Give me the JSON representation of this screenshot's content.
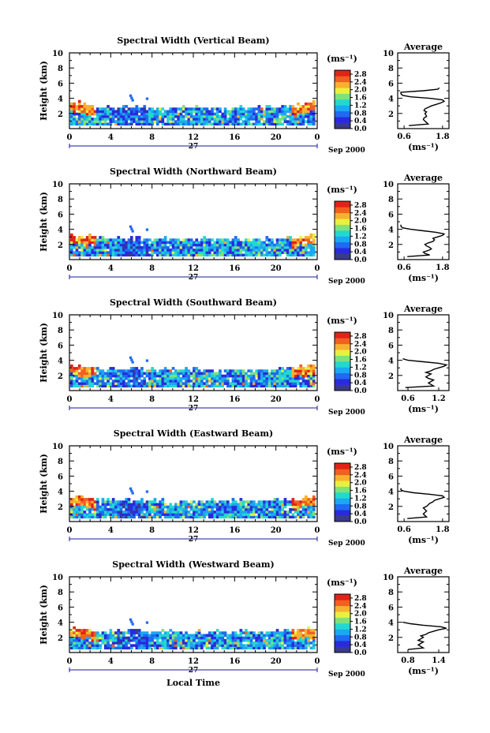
{
  "chart_data": [
    {
      "type": "heatmap",
      "title": "Spectral Width (Vertical Beam)",
      "ylabel": "Height (km)",
      "ylim": [
        0,
        10
      ],
      "yticks": [
        "2",
        "4",
        "6",
        "8",
        "10"
      ],
      "xlim": [
        0,
        24
      ],
      "xticks": [
        "0",
        "4",
        "8",
        "12",
        "16",
        "20",
        "0"
      ],
      "date_day": "27",
      "date_label": "Sep 2000",
      "colorbar_unit": "(ms⁻¹)",
      "colorbar_ticks": [
        "0.0",
        "0.4",
        "0.8",
        "1.2",
        "1.6",
        "2.0",
        "2.4",
        "2.8"
      ],
      "colorbar_range": [
        0,
        3.0
      ],
      "cloud_top_km": [
        3.3,
        3.0,
        2.8,
        2.7,
        2.7,
        2.8,
        2.6,
        2.6,
        2.7,
        2.6,
        2.6,
        2.5,
        2.6,
        2.7,
        2.6,
        2.6,
        2.7,
        2.6,
        2.6,
        2.7,
        2.7,
        2.8,
        3.0,
        3.4
      ],
      "avg_title": "Average",
      "avg_xticks": [
        "0.6",
        "1.8"
      ],
      "avg_xlim": [
        0.4,
        2.0
      ],
      "avg_xlabel": "(ms⁻¹)",
      "avg_profile": {
        "h": [
          0.4,
          0.6,
          0.8,
          1.0,
          1.2,
          1.4,
          1.6,
          1.8,
          2.0,
          2.2,
          2.4,
          2.6,
          2.8,
          3.0,
          3.2,
          3.4,
          3.6,
          3.8,
          4.0,
          4.2,
          4.4,
          4.6,
          4.8,
          5.0,
          5.2,
          5.4
        ],
        "w": [
          0.75,
          1.35,
          1.3,
          1.25,
          1.2,
          1.22,
          1.3,
          1.28,
          1.25,
          1.3,
          1.22,
          1.25,
          1.35,
          1.45,
          1.6,
          1.75,
          1.85,
          1.8,
          1.4,
          0.8,
          0.55,
          0.5,
          0.5,
          1.2,
          1.65,
          1.7
        ]
      }
    },
    {
      "type": "heatmap",
      "title": "Spectral Width (Northward Beam)",
      "ylabel": "Height (km)",
      "ylim": [
        0,
        10
      ],
      "yticks": [
        "2",
        "4",
        "6",
        "8",
        "10"
      ],
      "xlim": [
        0,
        24
      ],
      "xticks": [
        "0",
        "4",
        "8",
        "12",
        "16",
        "20",
        "0"
      ],
      "date_day": "27",
      "date_label": "Sep 2000",
      "colorbar_unit": "(ms⁻¹)",
      "colorbar_ticks": [
        "0.0",
        "0.4",
        "0.8",
        "1.2",
        "1.6",
        "2.0",
        "2.4",
        "2.8"
      ],
      "colorbar_range": [
        0,
        3.0
      ],
      "cloud_top_km": [
        3.1,
        3.0,
        2.8,
        2.7,
        2.7,
        2.6,
        2.6,
        2.5,
        2.6,
        2.6,
        2.5,
        2.5,
        2.6,
        2.6,
        2.6,
        2.5,
        2.6,
        2.6,
        2.5,
        2.6,
        2.6,
        2.7,
        2.9,
        3.2
      ],
      "avg_title": "Average",
      "avg_xticks": [
        "0.6",
        "1.8"
      ],
      "avg_xlim": [
        0.4,
        2.0
      ],
      "avg_xlabel": "(ms⁻¹)",
      "avg_profile": {
        "h": [
          0.4,
          0.6,
          0.8,
          1.0,
          1.2,
          1.4,
          1.6,
          1.8,
          2.0,
          2.2,
          2.4,
          2.6,
          2.8,
          3.0,
          3.2,
          3.4,
          3.6,
          3.8,
          4.0,
          4.2,
          4.4,
          4.6
        ],
        "w": [
          0.7,
          1.4,
          1.25,
          1.2,
          1.35,
          1.45,
          1.4,
          1.3,
          1.25,
          1.35,
          1.5,
          1.55,
          1.5,
          1.65,
          1.8,
          1.85,
          1.6,
          1.2,
          0.8,
          0.55,
          0.5,
          0.5
        ]
      }
    },
    {
      "type": "heatmap",
      "title": "Spectral Width (Southward Beam)",
      "ylabel": "Height (km)",
      "ylim": [
        0,
        10
      ],
      "yticks": [
        "2",
        "4",
        "6",
        "8",
        "10"
      ],
      "xlim": [
        0,
        24
      ],
      "xticks": [
        "0",
        "4",
        "8",
        "12",
        "16",
        "20",
        "0"
      ],
      "date_day": "27",
      "date_label": "Sep 2000",
      "colorbar_unit": "(ms⁻¹)",
      "colorbar_ticks": [
        "0.0",
        "0.4",
        "0.8",
        "1.2",
        "1.6",
        "2.0",
        "2.4",
        "2.8"
      ],
      "colorbar_range": [
        0,
        3.0
      ],
      "cloud_top_km": [
        3.2,
        3.0,
        2.9,
        2.8,
        2.7,
        2.7,
        2.8,
        2.6,
        2.6,
        2.7,
        2.6,
        2.6,
        2.7,
        2.7,
        2.6,
        2.6,
        2.7,
        2.6,
        2.5,
        2.6,
        2.7,
        2.8,
        3.0,
        3.3
      ],
      "avg_title": "Average",
      "avg_xticks": [
        "0.6",
        "1.2"
      ],
      "avg_xlim": [
        0.4,
        1.4
      ],
      "avg_xlabel": "(ms⁻¹)",
      "avg_profile": {
        "h": [
          0.4,
          0.6,
          0.8,
          1.0,
          1.2,
          1.4,
          1.6,
          1.8,
          2.0,
          2.2,
          2.4,
          2.6,
          2.8,
          3.0,
          3.2,
          3.4,
          3.6,
          3.8,
          4.0,
          4.2
        ],
        "w": [
          0.55,
          1.1,
          1.05,
          1.0,
          1.05,
          1.1,
          1.0,
          0.95,
          1.0,
          1.05,
          0.95,
          1.05,
          1.1,
          1.2,
          1.3,
          1.35,
          1.2,
          0.9,
          0.6,
          0.5
        ]
      }
    },
    {
      "type": "heatmap",
      "title": "Spectral Width (Eastward Beam)",
      "ylabel": "Height (km)",
      "ylim": [
        0,
        10
      ],
      "yticks": [
        "2",
        "4",
        "6",
        "8",
        "10"
      ],
      "xlim": [
        0,
        24
      ],
      "xticks": [
        "0",
        "4",
        "8",
        "12",
        "16",
        "20",
        "0"
      ],
      "date_day": "27",
      "date_label": "Sep 2000",
      "colorbar_unit": "(ms⁻¹)",
      "colorbar_ticks": [
        "0.0",
        "0.4",
        "0.8",
        "1.2",
        "1.6",
        "2.0",
        "2.4",
        "2.8"
      ],
      "colorbar_range": [
        0,
        3.0
      ],
      "cloud_top_km": [
        3.2,
        3.0,
        2.8,
        2.8,
        2.7,
        2.7,
        2.8,
        2.6,
        2.6,
        2.6,
        2.5,
        2.6,
        2.6,
        2.6,
        2.5,
        2.6,
        2.6,
        2.5,
        2.6,
        2.6,
        2.6,
        2.7,
        2.9,
        3.1
      ],
      "avg_title": "Average",
      "avg_xticks": [
        "0.6",
        "1.8"
      ],
      "avg_xlim": [
        0.4,
        2.0
      ],
      "avg_xlabel": "(ms⁻¹)",
      "avg_profile": {
        "h": [
          0.4,
          0.6,
          0.8,
          1.0,
          1.2,
          1.4,
          1.6,
          1.8,
          2.0,
          2.2,
          2.4,
          2.6,
          2.8,
          3.0,
          3.2,
          3.4,
          3.6,
          3.8,
          4.0,
          4.2,
          4.4
        ],
        "w": [
          0.7,
          1.3,
          1.25,
          1.2,
          1.25,
          1.3,
          1.25,
          1.2,
          1.3,
          1.35,
          1.4,
          1.5,
          1.55,
          1.7,
          1.85,
          1.8,
          1.4,
          0.9,
          0.6,
          0.5,
          0.5
        ]
      }
    },
    {
      "type": "heatmap",
      "title": "Spectral Width (Westward Beam)",
      "ylabel": "Height (km)",
      "ylim": [
        0,
        10
      ],
      "yticks": [
        "2",
        "4",
        "6",
        "8",
        "10"
      ],
      "xlim": [
        0,
        24
      ],
      "xticks": [
        "0",
        "4",
        "8",
        "12",
        "16",
        "20",
        "0"
      ],
      "date_day": "27",
      "date_label": "Sep 2000",
      "xlabel": "Local Time",
      "colorbar_unit": "(ms⁻¹)",
      "colorbar_ticks": [
        "0.0",
        "0.4",
        "0.8",
        "1.2",
        "1.6",
        "2.0",
        "2.4",
        "2.8"
      ],
      "colorbar_range": [
        0,
        3.0
      ],
      "cloud_top_km": [
        3.0,
        2.9,
        2.8,
        2.8,
        2.7,
        2.7,
        2.8,
        2.6,
        2.7,
        2.6,
        2.6,
        2.5,
        2.6,
        2.6,
        2.6,
        2.5,
        2.6,
        2.6,
        2.5,
        2.6,
        2.6,
        2.7,
        2.9,
        3.1
      ],
      "avg_title": "Average",
      "avg_xticks": [
        "0.8",
        "1.4"
      ],
      "avg_xlim": [
        0.6,
        1.6
      ],
      "avg_xlabel": "(ms⁻¹)",
      "avg_profile": {
        "h": [
          0.4,
          0.6,
          0.8,
          1.0,
          1.2,
          1.4,
          1.6,
          1.8,
          2.0,
          2.2,
          2.4,
          2.6,
          2.8,
          3.0,
          3.2,
          3.4,
          3.6,
          3.8,
          4.0
        ],
        "w": [
          0.8,
          1.1,
          1.05,
          1.0,
          1.05,
          1.1,
          1.0,
          1.05,
          1.1,
          1.05,
          1.15,
          1.2,
          1.3,
          1.4,
          1.55,
          1.45,
          1.1,
          0.85,
          0.7
        ]
      }
    }
  ],
  "colors": {
    "scale": [
      "#3a3a8a",
      "#2a2adc",
      "#1f6af0",
      "#1ba8f2",
      "#22d8d0",
      "#7ee27a",
      "#e8f040",
      "#f8b030",
      "#f06020",
      "#e02418"
    ],
    "axis_blue": "#1a1a9a"
  }
}
